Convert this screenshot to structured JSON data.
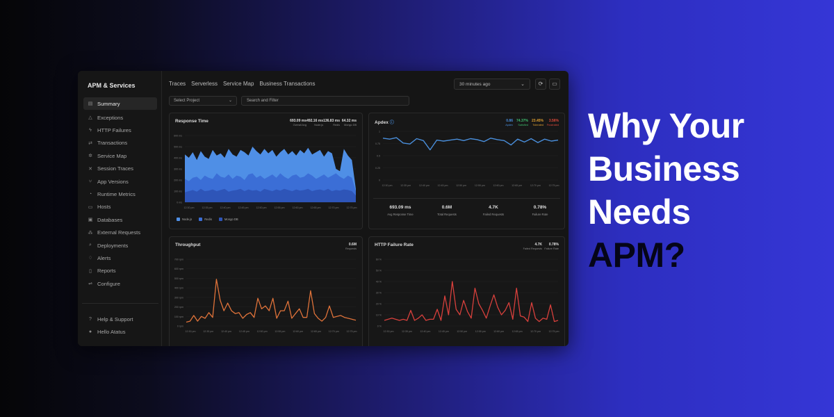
{
  "headline": {
    "line1": "Why Your",
    "line2": "Business",
    "line3": "Needs",
    "line4": "APM?"
  },
  "sidebar": {
    "title": "APM & Services",
    "items": [
      {
        "label": "Summary",
        "icon": "summary-icon",
        "glyph": "▤"
      },
      {
        "label": "Exceptions",
        "icon": "warning-icon",
        "glyph": "△"
      },
      {
        "label": "HTTP Failures",
        "icon": "bolt-icon",
        "glyph": "ϟ"
      },
      {
        "label": "Transactions",
        "icon": "swap-icon",
        "glyph": "⇄"
      },
      {
        "label": "Service Map",
        "icon": "gear-icon",
        "glyph": "✲"
      },
      {
        "label": "Session Traces",
        "icon": "cross-icon",
        "glyph": "✕"
      },
      {
        "label": "App Versions",
        "icon": "branch-icon",
        "glyph": "⑂"
      },
      {
        "label": "Runtime Metrics",
        "icon": "gauge-icon",
        "glyph": "◔"
      },
      {
        "label": "Hosts",
        "icon": "server-icon",
        "glyph": "▭"
      },
      {
        "label": "Databases",
        "icon": "database-icon",
        "glyph": "▣"
      },
      {
        "label": "External Requests",
        "icon": "network-icon",
        "glyph": "⁂"
      },
      {
        "label": "Deployments",
        "icon": "search-icon",
        "glyph": "⌕"
      },
      {
        "label": "Alerts",
        "icon": "bell-icon",
        "glyph": "♢"
      },
      {
        "label": "Reports",
        "icon": "report-icon",
        "glyph": "▯"
      },
      {
        "label": "Configure",
        "icon": "sliders-icon",
        "glyph": "⇌"
      }
    ],
    "footer": [
      {
        "label": "Help & Support",
        "icon": "help-icon",
        "glyph": "?"
      },
      {
        "label": "Hello Atatus",
        "icon": "user-icon",
        "glyph": "●"
      }
    ]
  },
  "tabs": [
    "Traces",
    "Serverless",
    "Service Map",
    "Business Transactions"
  ],
  "time_select": "30 minutes ago",
  "project_select": "Select Project",
  "search_placeholder": "Search and Filter",
  "panels": {
    "response_time": {
      "title": "Response Time",
      "stats": [
        {
          "value": "693.09 ms",
          "label": "Overall Avg"
        },
        {
          "value": "492.16 ms",
          "label": "Node.js"
        },
        {
          "value": "136.83 ms",
          "label": "Redis"
        },
        {
          "value": "64.32 ms",
          "label": "Mongo DB"
        }
      ],
      "y_ticks": [
        "600 ms",
        "500 ms",
        "400 ms",
        "300 ms",
        "200 ms",
        "100 ms",
        "0 ms"
      ],
      "legend": [
        "Node.js",
        "Redis",
        "Mongo DB"
      ]
    },
    "apdex": {
      "title": "Apdex",
      "stats": [
        {
          "value": "0.86",
          "label": "Apdex",
          "color": "#4a90e2"
        },
        {
          "value": "74.37%",
          "label": "Satisfied",
          "color": "#3fbf6f"
        },
        {
          "value": "23.45%",
          "label": "Tolerated",
          "color": "#e0a030"
        },
        {
          "value": "3.56%",
          "label": "Frustrated",
          "color": "#e04a3a"
        }
      ],
      "y_ticks": [
        "1",
        "0.75",
        "0.5",
        "0.25",
        "0"
      ],
      "summary": [
        {
          "value": "693.09 ms",
          "label": "Avg Response Time"
        },
        {
          "value": "0.6M",
          "label": "Total Requests"
        },
        {
          "value": "4.7K",
          "label": "Failed Requests"
        },
        {
          "value": "0.78%",
          "label": "Failure Rate"
        }
      ]
    },
    "throughput": {
      "title": "Throughput",
      "stats": [
        {
          "value": "0.6M",
          "label": "Requests"
        }
      ],
      "y_ticks": [
        "700 rpm",
        "600 rpm",
        "500 rpm",
        "400 rpm",
        "300 rpm",
        "200 rpm",
        "100 rpm",
        "0 rpm"
      ]
    },
    "failure_rate": {
      "title": "HTTP Failure Rate",
      "stats": [
        {
          "value": "4.7K",
          "label": "Failed Requests"
        },
        {
          "value": "0.78%",
          "label": "Failure Rate"
        }
      ],
      "y_ticks": [
        "60 %",
        "50 %",
        "40 %",
        "30 %",
        "20 %",
        "10 %",
        "0 %"
      ]
    }
  },
  "x_ticks": [
    "12:30 pm",
    "12:35 pm",
    "12:40 pm",
    "12:45 pm",
    "12:50 pm",
    "12:55 pm",
    "12:60 pm",
    "12:65 pm",
    "12:70 pm",
    "12:75 pm"
  ],
  "colors": {
    "node": "#4f8fe6",
    "redis": "#3b6ed6",
    "mongo": "#2e55b8",
    "apdex": "#4a8fdc",
    "throughput": "#e0733a",
    "failure": "#d8403c"
  },
  "chart_data": [
    {
      "type": "area",
      "title": "Response Time",
      "ylim": [
        0,
        600
      ],
      "series": [
        {
          "name": "Node.js",
          "values": [
            430,
            400,
            450,
            380,
            460,
            410,
            390,
            470,
            420,
            440,
            400,
            480,
            430,
            410,
            470,
            450,
            420,
            500,
            460,
            430,
            480,
            440,
            470,
            410,
            450,
            480,
            430,
            460,
            420,
            470,
            440,
            490,
            430,
            450,
            470,
            410,
            460,
            440,
            300,
            280,
            480,
            420,
            380,
            120
          ]
        },
        {
          "name": "Redis",
          "values": [
            210,
            190,
            220,
            230,
            200,
            240,
            220,
            210,
            260,
            230,
            220,
            250,
            210,
            240,
            230,
            200,
            250,
            260,
            220,
            240,
            210,
            230,
            250,
            220,
            260,
            230,
            210,
            240,
            250,
            220,
            230,
            260,
            240,
            210,
            230,
            250,
            220,
            240,
            260,
            230,
            210,
            240,
            220,
            100
          ]
        },
        {
          "name": "Mongo DB",
          "values": [
            90,
            100,
            110,
            95,
            120,
            100,
            105,
            115,
            100,
            110,
            120,
            95,
            105,
            110,
            120,
            100,
            115,
            105,
            110,
            95,
            120,
            110,
            100,
            115,
            105,
            120,
            110,
            100,
            115,
            105,
            110,
            120,
            100,
            110,
            115,
            105,
            120,
            100,
            110,
            105,
            115,
            110,
            100,
            60
          ]
        }
      ]
    },
    {
      "type": "line",
      "title": "Apdex",
      "ylim": [
        0,
        1
      ],
      "series": [
        {
          "name": "Apdex",
          "values": [
            0.86,
            0.84,
            0.87,
            0.76,
            0.74,
            0.85,
            0.81,
            0.62,
            0.82,
            0.8,
            0.82,
            0.84,
            0.81,
            0.85,
            0.83,
            0.79,
            0.86,
            0.83,
            0.81,
            0.72,
            0.84,
            0.78,
            0.85,
            0.77,
            0.84,
            0.8,
            0.82
          ]
        }
      ]
    },
    {
      "type": "line",
      "title": "Throughput",
      "ylim": [
        0,
        700
      ],
      "series": [
        {
          "name": "Throughput",
          "values": [
            40,
            50,
            110,
            50,
            100,
            80,
            140,
            90,
            490,
            270,
            160,
            240,
            160,
            130,
            140,
            80,
            120,
            140,
            90,
            290,
            180,
            210,
            160,
            290,
            80,
            160,
            160,
            260,
            80,
            130,
            180,
            90,
            90,
            370,
            130,
            80,
            50,
            90,
            210,
            90,
            100,
            110,
            90,
            80,
            70,
            60
          ]
        }
      ]
    },
    {
      "type": "line",
      "title": "HTTP Failure Rate",
      "ylim": [
        0,
        60
      ],
      "series": [
        {
          "name": "HTTP Failure Rate",
          "values": [
            5,
            6,
            7,
            6,
            5,
            6,
            5,
            14,
            5,
            7,
            10,
            5,
            6,
            6,
            15,
            5,
            27,
            10,
            40,
            15,
            10,
            23,
            13,
            7,
            34,
            20,
            14,
            7,
            18,
            28,
            17,
            10,
            14,
            21,
            6,
            34,
            9,
            8,
            4,
            21,
            7,
            4,
            7,
            6,
            19,
            4,
            5
          ]
        }
      ]
    }
  ]
}
